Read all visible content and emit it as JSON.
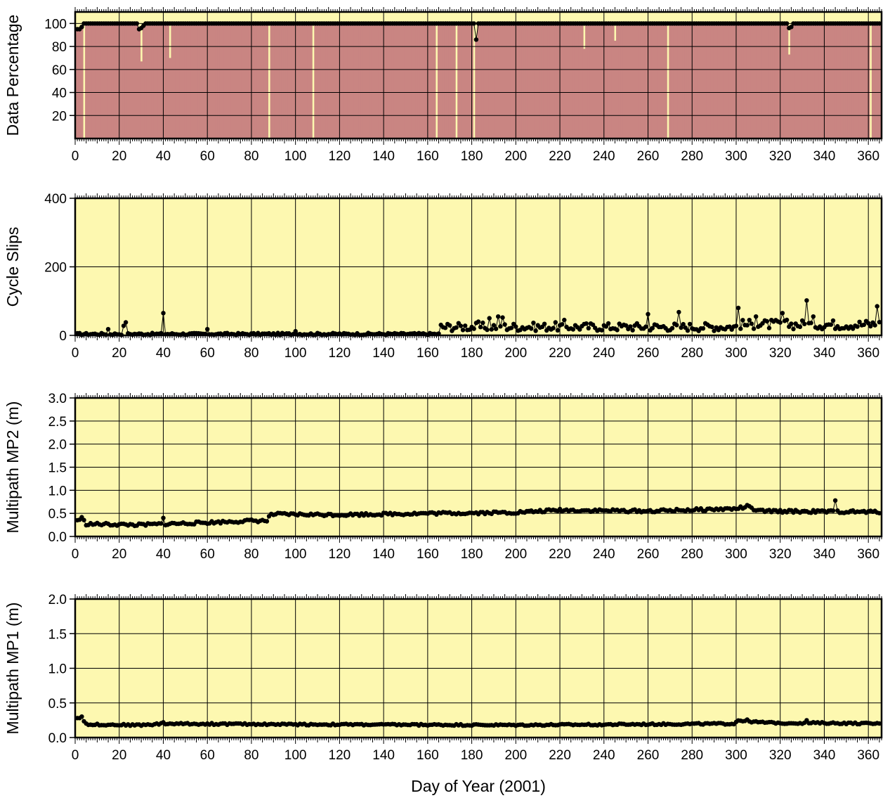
{
  "figure": {
    "xlabel": "Day of Year (2001)",
    "bg_color": "#fdf8b0",
    "fill_color": "#c98582",
    "line_color": "#000000"
  },
  "chart_data": [
    {
      "type": "area",
      "title": "",
      "ylabel": "Data Percentage",
      "xlabel": "",
      "xlim": [
        0,
        366
      ],
      "ylim": [
        0,
        110
      ],
      "x_ticks": [
        0,
        20,
        40,
        60,
        80,
        100,
        120,
        140,
        160,
        180,
        200,
        220,
        240,
        260,
        280,
        300,
        320,
        340,
        360
      ],
      "y_ticks": [
        20,
        40,
        60,
        80,
        100
      ],
      "baseline": 100,
      "points": [
        [
          1,
          95
        ],
        [
          2,
          95
        ],
        [
          3,
          97
        ],
        [
          29,
          95
        ],
        [
          30,
          96
        ],
        [
          31,
          98
        ],
        [
          182,
          86
        ],
        [
          183,
          100
        ],
        [
          324,
          96
        ],
        [
          325,
          97
        ]
      ],
      "gaps": [
        [
          4,
          0
        ],
        [
          30,
          67
        ],
        [
          43,
          70
        ],
        [
          88,
          0
        ],
        [
          108,
          0
        ],
        [
          164,
          0
        ],
        [
          173,
          0
        ],
        [
          181,
          0
        ],
        [
          231,
          78
        ],
        [
          245,
          85
        ],
        [
          269,
          0
        ],
        [
          324,
          73
        ],
        [
          361,
          0
        ]
      ],
      "x_range": [
        1,
        365
      ]
    },
    {
      "type": "scatter",
      "title": "",
      "ylabel": "Cycle Slips",
      "xlabel": "",
      "xlim": [
        0,
        366
      ],
      "ylim": [
        0,
        400
      ],
      "x_ticks": [
        0,
        20,
        40,
        60,
        80,
        100,
        120,
        140,
        160,
        180,
        200,
        220,
        240,
        260,
        280,
        300,
        320,
        340,
        360
      ],
      "y_ticks": [
        0,
        200,
        400
      ],
      "segments": [
        {
          "x_start": 1,
          "x_end": 165,
          "base": 4,
          "amp": 3
        },
        {
          "x_start": 166,
          "x_end": 300,
          "base": 25,
          "amp": 12
        },
        {
          "x_start": 301,
          "x_end": 365,
          "base": 32,
          "amp": 14
        }
      ],
      "spikes": [
        [
          15,
          18
        ],
        [
          22,
          28
        ],
        [
          23,
          38
        ],
        [
          40,
          65
        ],
        [
          60,
          18
        ],
        [
          100,
          12
        ],
        [
          168,
          22
        ],
        [
          183,
          40
        ],
        [
          188,
          50
        ],
        [
          192,
          55
        ],
        [
          194,
          52
        ],
        [
          218,
          38
        ],
        [
          222,
          45
        ],
        [
          260,
          62
        ],
        [
          274,
          68
        ],
        [
          301,
          80
        ],
        [
          309,
          55
        ],
        [
          321,
          65
        ],
        [
          332,
          102
        ],
        [
          335,
          55
        ],
        [
          364,
          85
        ]
      ]
    },
    {
      "type": "scatter",
      "title": "",
      "ylabel": "Multipath MP2 (m)",
      "xlabel": "",
      "xlim": [
        0,
        366
      ],
      "ylim": [
        0,
        3
      ],
      "x_ticks": [
        0,
        20,
        40,
        60,
        80,
        100,
        120,
        140,
        160,
        180,
        200,
        220,
        240,
        260,
        280,
        300,
        320,
        340,
        360
      ],
      "y_ticks": [
        0.0,
        0.5,
        1.0,
        1.5,
        2.0,
        2.5,
        3.0
      ],
      "trend": [
        [
          1,
          0.35
        ],
        [
          3,
          0.4
        ],
        [
          5,
          0.27
        ],
        [
          30,
          0.25
        ],
        [
          40,
          0.27
        ],
        [
          60,
          0.3
        ],
        [
          80,
          0.34
        ],
        [
          87,
          0.34
        ],
        [
          89,
          0.48
        ],
        [
          120,
          0.47
        ],
        [
          160,
          0.5
        ],
        [
          200,
          0.52
        ],
        [
          220,
          0.57
        ],
        [
          260,
          0.55
        ],
        [
          300,
          0.6
        ],
        [
          305,
          0.65
        ],
        [
          310,
          0.55
        ],
        [
          365,
          0.53
        ]
      ],
      "noise": 0.03,
      "spikes": [
        [
          40,
          0.4
        ],
        [
          345,
          0.78
        ]
      ]
    },
    {
      "type": "scatter",
      "title": "",
      "ylabel": "Multipath MP1 (m)",
      "xlabel": "",
      "xlim": [
        0,
        366
      ],
      "ylim": [
        0,
        2
      ],
      "x_ticks": [
        0,
        20,
        40,
        60,
        80,
        100,
        120,
        140,
        160,
        180,
        200,
        220,
        240,
        260,
        280,
        300,
        320,
        340,
        360
      ],
      "y_ticks": [
        0.0,
        0.5,
        1.0,
        1.5,
        2.0
      ],
      "trend": [
        [
          1,
          0.28
        ],
        [
          3,
          0.3
        ],
        [
          5,
          0.19
        ],
        [
          30,
          0.18
        ],
        [
          40,
          0.2
        ],
        [
          100,
          0.19
        ],
        [
          200,
          0.18
        ],
        [
          299,
          0.2
        ],
        [
          301,
          0.25
        ],
        [
          310,
          0.22
        ],
        [
          320,
          0.21
        ],
        [
          340,
          0.21
        ],
        [
          365,
          0.2
        ]
      ],
      "noise": 0.012,
      "spikes": [
        [
          40,
          0.22
        ],
        [
          305,
          0.26
        ],
        [
          332,
          0.25
        ]
      ]
    }
  ]
}
